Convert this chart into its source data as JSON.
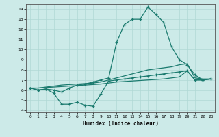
{
  "xlabel": "Humidex (Indice chaleur)",
  "bg_color": "#cceae8",
  "grid_color": "#b0d8d5",
  "line_color": "#1a7a6e",
  "xlim": [
    -0.5,
    23.5
  ],
  "ylim": [
    3.8,
    14.5
  ],
  "xticks": [
    0,
    1,
    2,
    3,
    4,
    5,
    6,
    7,
    8,
    9,
    10,
    11,
    12,
    13,
    14,
    15,
    16,
    17,
    18,
    19,
    20,
    21,
    22,
    23
  ],
  "yticks": [
    4,
    5,
    6,
    7,
    8,
    9,
    10,
    11,
    12,
    13,
    14
  ],
  "series_peaked_x": [
    0,
    1,
    2,
    3,
    4,
    5,
    6,
    7,
    8,
    9,
    10,
    11,
    12,
    13,
    14,
    15,
    16,
    17,
    18,
    19,
    20,
    21,
    22,
    23
  ],
  "series_peaked_y": [
    6.2,
    6.0,
    6.1,
    6.0,
    5.8,
    6.2,
    6.5,
    6.6,
    6.8,
    7.0,
    7.2,
    10.7,
    12.5,
    13.0,
    13.0,
    14.2,
    13.5,
    12.7,
    10.3,
    9.0,
    8.5,
    7.5,
    7.0,
    7.1
  ],
  "series_low_x": [
    0,
    1,
    2,
    3,
    4,
    5,
    6,
    7,
    8,
    9,
    10,
    11,
    12,
    13,
    14,
    15,
    16,
    17,
    18,
    19,
    20,
    21,
    22,
    23
  ],
  "series_low_y": [
    6.2,
    6.0,
    6.1,
    5.7,
    4.6,
    4.6,
    4.8,
    4.5,
    4.4,
    5.6,
    6.9,
    7.0,
    7.1,
    7.2,
    7.3,
    7.4,
    7.5,
    7.6,
    7.7,
    7.8,
    7.9,
    7.0,
    7.0,
    7.1
  ],
  "series_line1_x": [
    0,
    1,
    2,
    3,
    4,
    5,
    6,
    7,
    8,
    9,
    10,
    11,
    12,
    13,
    14,
    15,
    16,
    17,
    18,
    19,
    20,
    21,
    22,
    23
  ],
  "series_line1_y": [
    6.2,
    6.2,
    6.25,
    6.3,
    6.35,
    6.4,
    6.45,
    6.5,
    6.55,
    6.6,
    6.7,
    6.8,
    6.85,
    6.9,
    6.95,
    7.0,
    7.05,
    7.1,
    7.2,
    7.3,
    7.9,
    7.0,
    7.0,
    7.1
  ],
  "series_line2_x": [
    0,
    1,
    2,
    3,
    4,
    5,
    6,
    7,
    8,
    9,
    10,
    11,
    12,
    13,
    14,
    15,
    16,
    17,
    18,
    19,
    20,
    21,
    22,
    23
  ],
  "series_line2_y": [
    6.2,
    6.2,
    6.3,
    6.4,
    6.5,
    6.55,
    6.6,
    6.65,
    6.7,
    6.8,
    7.0,
    7.2,
    7.4,
    7.6,
    7.8,
    8.0,
    8.1,
    8.2,
    8.3,
    8.5,
    8.6,
    7.2,
    7.1,
    7.1
  ]
}
